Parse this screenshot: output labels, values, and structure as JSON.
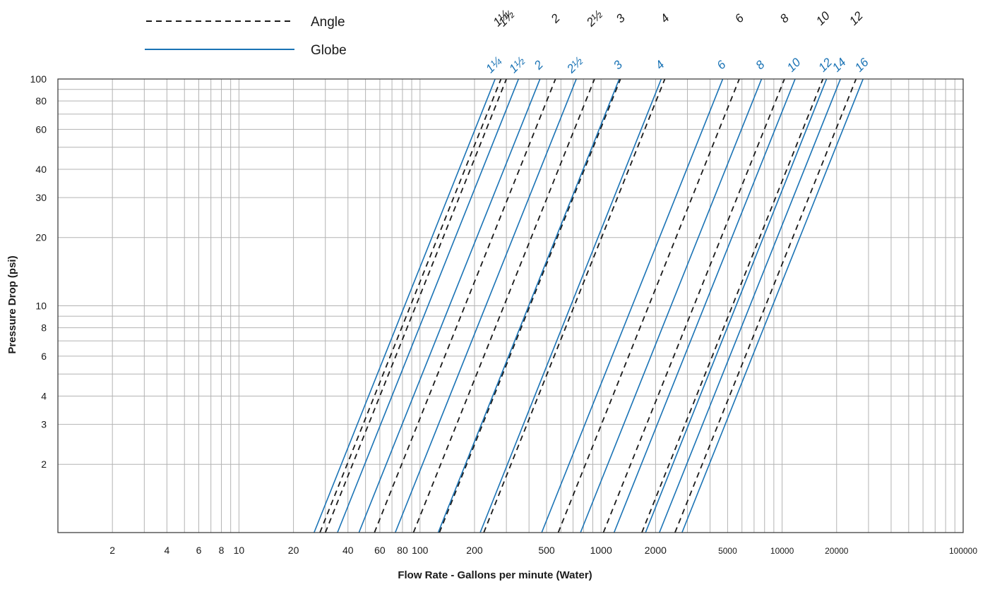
{
  "chart_data": {
    "type": "line",
    "xlabel": "Flow Rate - Gallons per minute (Water)",
    "ylabel": "Pressure Drop (psi)",
    "x_scale": "log",
    "y_scale": "log",
    "xlim": [
      1,
      100000
    ],
    "ylim": [
      1,
      100
    ],
    "grid": true,
    "legend_position": "top-left",
    "x_ticks": [
      {
        "value": 2,
        "label": "2"
      },
      {
        "value": 4,
        "label": "4"
      },
      {
        "value": 6,
        "label": "6"
      },
      {
        "value": 8,
        "label": "8"
      },
      {
        "value": 10,
        "label": "10"
      },
      {
        "value": 20,
        "label": "20"
      },
      {
        "value": 40,
        "label": "40"
      },
      {
        "value": 60,
        "label": "60"
      },
      {
        "value": 80,
        "label": "80"
      },
      {
        "value": 100,
        "label": "100"
      },
      {
        "value": 200,
        "label": "200"
      },
      {
        "value": 500,
        "label": "500"
      },
      {
        "value": 1000,
        "label": "1000"
      },
      {
        "value": 2000,
        "label": "2000"
      },
      {
        "value": 5000,
        "label": "5000"
      },
      {
        "value": 10000,
        "label": "10000"
      },
      {
        "value": 20000,
        "label": "20000"
      },
      {
        "value": 100000,
        "label": "100000"
      }
    ],
    "y_ticks": [
      {
        "value": 2,
        "label": "2"
      },
      {
        "value": 3,
        "label": "3"
      },
      {
        "value": 4,
        "label": "4"
      },
      {
        "value": 6,
        "label": "6"
      },
      {
        "value": 8,
        "label": "8"
      },
      {
        "value": 10,
        "label": "10"
      },
      {
        "value": 20,
        "label": "20"
      },
      {
        "value": 30,
        "label": "30"
      },
      {
        "value": 40,
        "label": "40"
      },
      {
        "value": 60,
        "label": "60"
      },
      {
        "value": 80,
        "label": "80"
      },
      {
        "value": 100,
        "label": "100"
      }
    ],
    "legend": [
      {
        "name": "Angle",
        "color": "#1a1a1a",
        "style": "dashed"
      },
      {
        "name": "Globe",
        "color": "#1a73b5",
        "style": "solid"
      }
    ],
    "series": [
      {
        "group": "Angle",
        "label": "1¼",
        "x": [
          28,
          280
        ],
        "y": [
          1,
          100
        ]
      },
      {
        "group": "Angle",
        "label": "1½",
        "x": [
          30,
          300
        ],
        "y": [
          1,
          100
        ]
      },
      {
        "group": "Angle",
        "label": "2",
        "x": [
          56,
          560
        ],
        "y": [
          1,
          100
        ]
      },
      {
        "group": "Angle",
        "label": "2½",
        "x": [
          92,
          920
        ],
        "y": [
          1,
          100
        ]
      },
      {
        "group": "Angle",
        "label": "3",
        "x": [
          128,
          1280
        ],
        "y": [
          1,
          100
        ]
      },
      {
        "group": "Angle",
        "label": "4",
        "x": [
          225,
          2250
        ],
        "y": [
          1,
          100
        ]
      },
      {
        "group": "Angle",
        "label": "6",
        "x": [
          580,
          5800
        ],
        "y": [
          1,
          100
        ]
      },
      {
        "group": "Angle",
        "label": "8",
        "x": [
          1030,
          10300
        ],
        "y": [
          1,
          100
        ]
      },
      {
        "group": "Angle",
        "label": "10",
        "x": [
          1680,
          16800
        ],
        "y": [
          1,
          100
        ]
      },
      {
        "group": "Angle",
        "label": "12",
        "x": [
          2560,
          25600
        ],
        "y": [
          1,
          100
        ]
      },
      {
        "group": "Globe",
        "label": "1¼",
        "x": [
          26,
          260
        ],
        "y": [
          1,
          100
        ]
      },
      {
        "group": "Globe",
        "label": "1½",
        "x": [
          35,
          350
        ],
        "y": [
          1,
          100
        ]
      },
      {
        "group": "Globe",
        "label": "2",
        "x": [
          46,
          460
        ],
        "y": [
          1,
          100
        ]
      },
      {
        "group": "Globe",
        "label": "2½",
        "x": [
          73,
          730
        ],
        "y": [
          1,
          100
        ]
      },
      {
        "group": "Globe",
        "label": "3",
        "x": [
          126,
          1260
        ],
        "y": [
          1,
          100
        ]
      },
      {
        "group": "Globe",
        "label": "4",
        "x": [
          215,
          2150
        ],
        "y": [
          1,
          100
        ]
      },
      {
        "group": "Globe",
        "label": "6",
        "x": [
          470,
          4700
        ],
        "y": [
          1,
          100
        ]
      },
      {
        "group": "Globe",
        "label": "8",
        "x": [
          770,
          7700
        ],
        "y": [
          1,
          100
        ]
      },
      {
        "group": "Globe",
        "label": "10",
        "x": [
          1180,
          11800
        ],
        "y": [
          1,
          100
        ]
      },
      {
        "group": "Globe",
        "label": "12",
        "x": [
          1760,
          17600
        ],
        "y": [
          1,
          100
        ]
      },
      {
        "group": "Globe",
        "label": "14",
        "x": [
          2100,
          21000
        ],
        "y": [
          1,
          100
        ]
      },
      {
        "group": "Globe",
        "label": "16",
        "x": [
          2800,
          28000
        ],
        "y": [
          1,
          100
        ]
      }
    ]
  }
}
